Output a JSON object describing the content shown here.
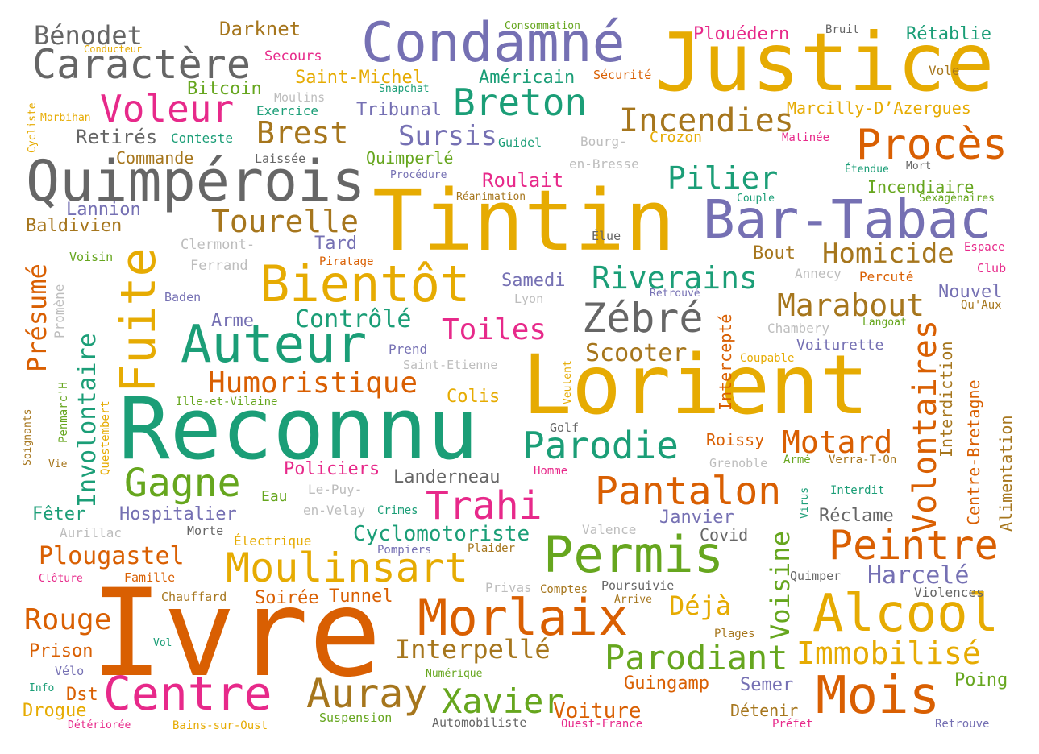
{
  "palette": {
    "green": "#1b9e77",
    "orange": "#d95f02",
    "purple": "#7570b3",
    "pink": "#e7298a",
    "lime": "#66a61e",
    "yellow": "#e6ab02",
    "brown": "#a6761d",
    "gray": "#666666",
    "lightgray": "#bdbdbd"
  },
  "words": {
    "w1": "Ivre",
    "w2": "Reconnu",
    "w3": "Lorient",
    "w4": "Tintin",
    "w5": "Justice",
    "w6": "Quimpérois",
    "w7": "Condamné",
    "w8": "Bar-Tabac",
    "w9": "Fuite",
    "w10": "Auteur",
    "w11": "Bientôt",
    "w12": "Centre",
    "w13": "Morlaix",
    "w14": "Permis",
    "w15": "Alcool",
    "w16": "Mois",
    "w17": "Caractère",
    "w18": "Procès",
    "w19": "Breton",
    "w20": "Moulinsart",
    "w21": "Auray",
    "w22": "Voleur",
    "w23": "Zébré",
    "w24": "Pantalon",
    "w25": "Peintre",
    "w26": "Gagne",
    "w27": "Trahi",
    "w28": "Parodie",
    "w29": "Volontaires",
    "w30": "Incendies",
    "w31": "Parodiant",
    "w32": "Immobilisé",
    "w33": "Xavier",
    "w34": "Plougastel",
    "w35": "Rouge",
    "w36": "Humoristique",
    "w37": "Riverains",
    "w38": "Pilier",
    "w39": "Marabout",
    "w40": "Brest",
    "w41": "Tourelle",
    "w42": "Homicide",
    "w43": "Motard",
    "w44": "Toiles",
    "w45": "Interpellé",
    "w46": "Involontaire",
    "w47": "Présumé",
    "w48": "Voisine",
    "w49": "Bénodet",
    "w50": "Sursis",
    "w51": "Harcelé",
    "w52": "Contrôlé",
    "w53": "Scooter",
    "w54": "Cyclomotoriste",
    "w55": "Déjà",
    "w56": "Voiture",
    "w57": "Guingamp",
    "w58": "Darknet",
    "w59": "Plouédern",
    "w60": "Rétablie",
    "w61": "Saint-Michel",
    "w62": "Américain",
    "w63": "Tribunal",
    "w64": "Bitcoin",
    "w65": "Retirés",
    "w66": "Commande",
    "w67": "Quimperlé",
    "w68": "Roulait",
    "w69": "Incendiaire",
    "w70": "Tard",
    "w71": "Lannion",
    "w72": "Baldivien",
    "w73": "Bout",
    "w74": "Samedi",
    "w75": "Arme",
    "w76": "Colis",
    "w77": "Policiers",
    "w78": "Landerneau",
    "w79": "Hospitalier",
    "w80": "Fêter",
    "w81": "Soirée",
    "w82": "Tunnel",
    "w83": "Prison",
    "w84": "Drogue",
    "w85": "Dst",
    "w86": "Semer",
    "w87": "Détenir",
    "w88": "Poing",
    "w89": "Réclame",
    "w90": "Janvier",
    "w91": "Covid",
    "w92": "Roissy",
    "w93": "Interdiction",
    "w94": "Centre-Bretagne",
    "w95": "Alimentation",
    "w96": "Voiturette",
    "w97": "Nouvel",
    "w98": "Marcilly-D’Azergues",
    "w99": "Crozon",
    "w100": "Sécurité",
    "w101": "Secours",
    "w102": "Conducteur",
    "w103": "Moulins",
    "w104": "Exercice",
    "w105": "Conteste",
    "w106": "Laissée",
    "w107": "Guidel",
    "w108": "Bourg-",
    "w109": "en-Bresse",
    "w110": "Procédure",
    "w111": "Réanimation",
    "w112": "Clermont-",
    "w113": "Ferrand",
    "w114": "Piratage",
    "w115": "Élue",
    "w116": "Baden",
    "w117": "Lyon",
    "w118": "Retrouvé",
    "w119": "Prend",
    "w120": "Saint-Etienne",
    "w121": "Veulent",
    "w122": "Golf",
    "w123": "Homme",
    "w124": "Grenoble",
    "w125": "Armé",
    "w126": "Verra-T-On",
    "w127": "Interdit",
    "w128": "Virus",
    "w129": "Eau",
    "w130": "Le-Puy-",
    "w131": "en-Velay",
    "w132": "Crimes",
    "w133": "Aurillac",
    "w134": "Morte",
    "w135": "Électrique",
    "w136": "Pompiers",
    "w137": "Plaider",
    "w138": "Valence",
    "w139": "Privas",
    "w140": "Comptes",
    "w141": "Poursuivie",
    "w142": "Arrive",
    "w143": "Quimper",
    "w144": "Violences",
    "w145": "Plages",
    "w146": "Chauffard",
    "w147": "Famille",
    "w148": "Clôture",
    "w149": "Vol",
    "w150": "Vélo",
    "w151": "Info",
    "w152": "Numérique",
    "w153": "Suspension",
    "w154": "Automobiliste",
    "w155": "Ouest-France",
    "w156": "Préfet",
    "w157": "Retrouve",
    "w158": "Détériorée",
    "w159": "Bains-sur-Oust",
    "w160": "Ille-et-Vilaine",
    "w161": "Penmarc'H",
    "w162": "Questembert",
    "w163": "Soignants",
    "w164": "Vie",
    "w165": "Promène",
    "w166": "Voisin",
    "w167": "Cycliste",
    "w168": "Morbihan",
    "w169": "Consommation",
    "w170": "Snapchat",
    "w171": "Bruit",
    "w172": "Vole",
    "w173": "Matinée",
    "w174": "Étendue",
    "w175": "Mort",
    "w176": "Couple",
    "w177": "Sexagénaires",
    "w178": "Espace",
    "w179": "Club",
    "w180": "Annecy",
    "w181": "Percuté",
    "w182": "Qu'Aux",
    "w183": "Langoat",
    "w184": "Chambery",
    "w185": "Coupable",
    "w186": "Intercepté"
  }
}
